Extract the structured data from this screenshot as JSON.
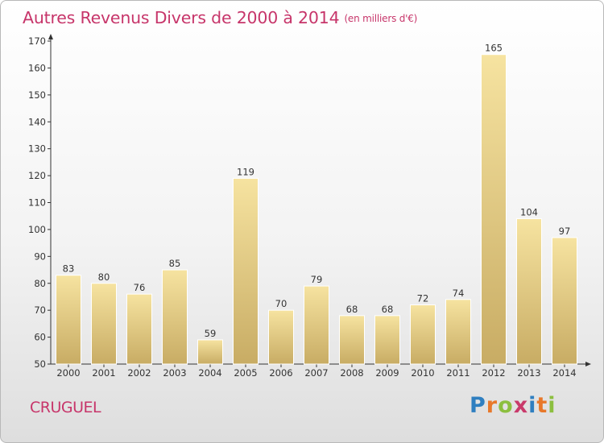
{
  "title": "Autres Revenus Divers de 2000 à 2014",
  "unit_label": "(en milliers d'€)",
  "commune": "CRUGUEL",
  "logo_text": "Proxiti",
  "colors": {
    "title": "#c7356a",
    "bar_light": "#f5e19c",
    "bar_dark": "#c9ad66",
    "axis": "#333333"
  },
  "chart_data": {
    "type": "bar",
    "title": "Autres Revenus Divers de 2000 à 2014",
    "xlabel": "",
    "ylabel": "",
    "categories": [
      "2000",
      "2001",
      "2002",
      "2003",
      "2004",
      "2005",
      "2006",
      "2007",
      "2008",
      "2009",
      "2010",
      "2011",
      "2012",
      "2013",
      "2014"
    ],
    "values": [
      83,
      80,
      76,
      85,
      59,
      119,
      70,
      79,
      68,
      68,
      72,
      74,
      165,
      104,
      97
    ],
    "ylim": [
      50,
      170
    ],
    "yticks": [
      50,
      60,
      70,
      80,
      90,
      100,
      110,
      120,
      130,
      140,
      150,
      160,
      170
    ],
    "grid": false,
    "data_labels": true
  }
}
